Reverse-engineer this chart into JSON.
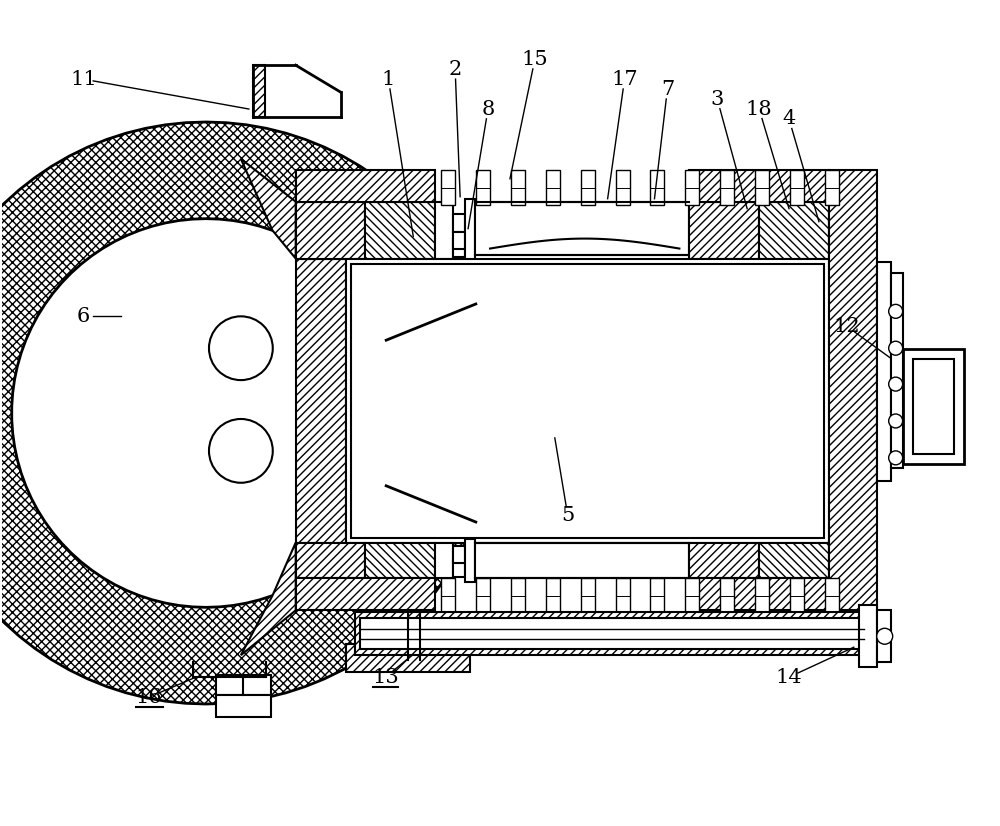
{
  "bg_color": "#ffffff",
  "line_color": "#000000",
  "figsize": [
    10.0,
    8.26
  ],
  "dpi": 100,
  "labels": [
    [
      "1",
      388,
      748,
      413,
      590
    ],
    [
      "2",
      455,
      758,
      460,
      630
    ],
    [
      "15",
      535,
      768,
      510,
      648
    ],
    [
      "8",
      488,
      718,
      468,
      598
    ],
    [
      "17",
      625,
      748,
      608,
      628
    ],
    [
      "7",
      668,
      738,
      655,
      628
    ],
    [
      "3",
      718,
      728,
      748,
      618
    ],
    [
      "18",
      760,
      718,
      790,
      618
    ],
    [
      "4",
      790,
      708,
      820,
      605
    ],
    [
      "6",
      82,
      510,
      120,
      510
    ],
    [
      "11",
      82,
      748,
      248,
      718
    ],
    [
      "12",
      848,
      500,
      892,
      468
    ],
    [
      "5",
      568,
      310,
      555,
      388
    ],
    [
      "13",
      385,
      148,
      412,
      170
    ],
    [
      "14",
      790,
      148,
      855,
      178
    ],
    [
      "16",
      148,
      128,
      195,
      148
    ]
  ]
}
